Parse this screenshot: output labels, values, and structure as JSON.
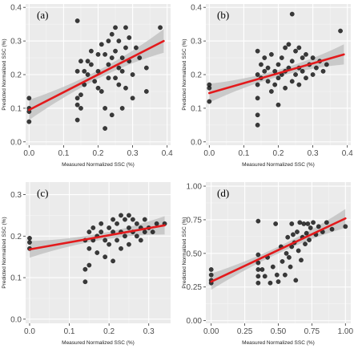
{
  "colors": {
    "panel_bg": "#ebebeb",
    "grid_major": "#ffffff",
    "grid_minor": "#f5f5f5",
    "point": "#1a1a1a",
    "fit_line": "#e31a1c",
    "ci_band": "#bdbdbd"
  },
  "chart_data": [
    {
      "type": "scatter",
      "panel_label": "(a)",
      "xlabel": "Measured Normalized SSC (%)",
      "ylabel": "Predicted Normalized SSC (%)",
      "xlim": [
        -0.01,
        0.41
      ],
      "ylim": [
        -0.01,
        0.41
      ],
      "xticks": [
        0.0,
        0.1,
        0.2,
        0.3,
        0.4
      ],
      "xtick_labels": [
        "0.0",
        "0.1",
        "0.2",
        "0.3",
        "0.4"
      ],
      "yticks": [
        0.0,
        0.1,
        0.2,
        0.3,
        0.4
      ],
      "ytick_labels": [
        "0.0",
        "0.1",
        "0.2",
        "0.3",
        "0.4"
      ],
      "grid": true,
      "fit": {
        "x0": 0.0,
        "y0": 0.095,
        "x1": 0.39,
        "y1": 0.3,
        "ci": [
          0.03,
          0.012,
          0.035
        ]
      },
      "points": [
        [
          0.0,
          0.13
        ],
        [
          0.0,
          0.1
        ],
        [
          0.0,
          0.09
        ],
        [
          0.0,
          0.06
        ],
        [
          0.14,
          0.36
        ],
        [
          0.14,
          0.21
        ],
        [
          0.14,
          0.13
        ],
        [
          0.14,
          0.11
        ],
        [
          0.14,
          0.065
        ],
        [
          0.15,
          0.24
        ],
        [
          0.15,
          0.1
        ],
        [
          0.15,
          0.14
        ],
        [
          0.16,
          0.21
        ],
        [
          0.16,
          0.17
        ],
        [
          0.17,
          0.24
        ],
        [
          0.17,
          0.2
        ],
        [
          0.18,
          0.27
        ],
        [
          0.18,
          0.23
        ],
        [
          0.19,
          0.18
        ],
        [
          0.2,
          0.26
        ],
        [
          0.2,
          0.21
        ],
        [
          0.2,
          0.16
        ],
        [
          0.21,
          0.29
        ],
        [
          0.21,
          0.15
        ],
        [
          0.22,
          0.26
        ],
        [
          0.22,
          0.1
        ],
        [
          0.22,
          0.04
        ],
        [
          0.23,
          0.3
        ],
        [
          0.23,
          0.23
        ],
        [
          0.23,
          0.19
        ],
        [
          0.24,
          0.32
        ],
        [
          0.24,
          0.25
        ],
        [
          0.24,
          0.08
        ],
        [
          0.25,
          0.34
        ],
        [
          0.25,
          0.27
        ],
        [
          0.25,
          0.19
        ],
        [
          0.26,
          0.3
        ],
        [
          0.26,
          0.22
        ],
        [
          0.26,
          0.17
        ],
        [
          0.27,
          0.25
        ],
        [
          0.27,
          0.21
        ],
        [
          0.27,
          0.1
        ],
        [
          0.28,
          0.34
        ],
        [
          0.28,
          0.28
        ],
        [
          0.28,
          0.16
        ],
        [
          0.29,
          0.31
        ],
        [
          0.29,
          0.24
        ],
        [
          0.3,
          0.2
        ],
        [
          0.3,
          0.13
        ],
        [
          0.31,
          0.28
        ],
        [
          0.32,
          0.25
        ],
        [
          0.34,
          0.22
        ],
        [
          0.34,
          0.15
        ],
        [
          0.38,
          0.34
        ]
      ]
    },
    {
      "type": "scatter",
      "panel_label": "(b)",
      "xlabel": "Measured Normalized SSC (%)",
      "ylabel": "Predicted Normalized SSC (%)",
      "xlim": [
        -0.01,
        0.41
      ],
      "ylim": [
        -0.01,
        0.41
      ],
      "xticks": [
        0.0,
        0.1,
        0.2,
        0.3,
        0.4
      ],
      "xtick_labels": [
        "0.0",
        "0.1",
        "0.2",
        "0.3",
        "0.4"
      ],
      "yticks": [
        0.0,
        0.1,
        0.2,
        0.3,
        0.4
      ],
      "ytick_labels": [
        "0.0",
        "0.1",
        "0.2",
        "0.3",
        "0.4"
      ],
      "grid": true,
      "fit": {
        "x0": 0.0,
        "y0": 0.145,
        "x1": 0.39,
        "y1": 0.26,
        "ci": [
          0.028,
          0.01,
          0.03
        ]
      },
      "points": [
        [
          0.0,
          0.17
        ],
        [
          0.0,
          0.16
        ],
        [
          0.0,
          0.12
        ],
        [
          0.14,
          0.27
        ],
        [
          0.14,
          0.2
        ],
        [
          0.14,
          0.17
        ],
        [
          0.14,
          0.13
        ],
        [
          0.14,
          0.08
        ],
        [
          0.14,
          0.05
        ],
        [
          0.15,
          0.23
        ],
        [
          0.15,
          0.19
        ],
        [
          0.16,
          0.25
        ],
        [
          0.16,
          0.21
        ],
        [
          0.17,
          0.22
        ],
        [
          0.17,
          0.18
        ],
        [
          0.18,
          0.26
        ],
        [
          0.18,
          0.15
        ],
        [
          0.19,
          0.21
        ],
        [
          0.19,
          0.17
        ],
        [
          0.2,
          0.23
        ],
        [
          0.2,
          0.19
        ],
        [
          0.2,
          0.11
        ],
        [
          0.21,
          0.25
        ],
        [
          0.21,
          0.2
        ],
        [
          0.22,
          0.28
        ],
        [
          0.22,
          0.21
        ],
        [
          0.22,
          0.16
        ],
        [
          0.23,
          0.29
        ],
        [
          0.23,
          0.22
        ],
        [
          0.24,
          0.38
        ],
        [
          0.24,
          0.24
        ],
        [
          0.24,
          0.18
        ],
        [
          0.25,
          0.27
        ],
        [
          0.25,
          0.2
        ],
        [
          0.26,
          0.28
        ],
        [
          0.26,
          0.22
        ],
        [
          0.26,
          0.17
        ],
        [
          0.27,
          0.25
        ],
        [
          0.27,
          0.21
        ],
        [
          0.28,
          0.26
        ],
        [
          0.28,
          0.19
        ],
        [
          0.29,
          0.23
        ],
        [
          0.3,
          0.25
        ],
        [
          0.3,
          0.2
        ],
        [
          0.31,
          0.22
        ],
        [
          0.32,
          0.24
        ],
        [
          0.33,
          0.21
        ],
        [
          0.34,
          0.23
        ],
        [
          0.38,
          0.33
        ]
      ]
    },
    {
      "type": "scatter",
      "panel_label": "(c)",
      "xlabel": "Measured Normalized SSC (%)",
      "ylabel": "Predicted Normalized SSC (%)",
      "xlim": [
        -0.01,
        0.355
      ],
      "ylim": [
        -0.01,
        0.33
      ],
      "xticks": [
        0.0,
        0.1,
        0.2,
        0.3
      ],
      "xtick_labels": [
        "0.0",
        "0.1",
        "0.2",
        "0.3"
      ],
      "yticks": [
        0.0,
        0.1,
        0.2,
        0.3
      ],
      "ytick_labels": [
        "0.0",
        "0.1",
        "0.2",
        "0.3"
      ],
      "grid": true,
      "fit": {
        "x0": 0.0,
        "y0": 0.168,
        "x1": 0.34,
        "y1": 0.226,
        "ci": [
          0.02,
          0.008,
          0.022
        ]
      },
      "points": [
        [
          0.0,
          0.195
        ],
        [
          0.0,
          0.185
        ],
        [
          0.0,
          0.17
        ],
        [
          0.14,
          0.19
        ],
        [
          0.14,
          0.12
        ],
        [
          0.14,
          0.09
        ],
        [
          0.15,
          0.21
        ],
        [
          0.15,
          0.17
        ],
        [
          0.15,
          0.13
        ],
        [
          0.16,
          0.22
        ],
        [
          0.16,
          0.19
        ],
        [
          0.17,
          0.2
        ],
        [
          0.17,
          0.16
        ],
        [
          0.18,
          0.23
        ],
        [
          0.18,
          0.21
        ],
        [
          0.19,
          0.19
        ],
        [
          0.19,
          0.15
        ],
        [
          0.2,
          0.22
        ],
        [
          0.2,
          0.18
        ],
        [
          0.21,
          0.24
        ],
        [
          0.21,
          0.21
        ],
        [
          0.21,
          0.14
        ],
        [
          0.22,
          0.23
        ],
        [
          0.22,
          0.19
        ],
        [
          0.23,
          0.25
        ],
        [
          0.23,
          0.21
        ],
        [
          0.23,
          0.17
        ],
        [
          0.24,
          0.24
        ],
        [
          0.24,
          0.2
        ],
        [
          0.25,
          0.25
        ],
        [
          0.25,
          0.22
        ],
        [
          0.25,
          0.18
        ],
        [
          0.26,
          0.24
        ],
        [
          0.26,
          0.21
        ],
        [
          0.27,
          0.23
        ],
        [
          0.27,
          0.2
        ],
        [
          0.28,
          0.22
        ],
        [
          0.28,
          0.19
        ],
        [
          0.29,
          0.24
        ],
        [
          0.29,
          0.21
        ],
        [
          0.3,
          0.22
        ],
        [
          0.31,
          0.21
        ],
        [
          0.32,
          0.23
        ],
        [
          0.34,
          0.23
        ]
      ]
    },
    {
      "type": "scatter",
      "panel_label": "(d)",
      "xlabel": "Measured Normalized SSC (%)",
      "ylabel": "Predicted Normalized SSC (%)",
      "xlim": [
        -0.04,
        1.04
      ],
      "ylim": [
        -0.02,
        1.03
      ],
      "xticks": [
        0.0,
        0.25,
        0.5,
        0.75,
        1.0
      ],
      "xtick_labels": [
        "0.00",
        "0.25",
        "0.50",
        "0.75",
        "1.00"
      ],
      "yticks": [
        0.0,
        0.25,
        0.5,
        0.75,
        1.0
      ],
      "ytick_labels": [
        "0.00",
        "0.25",
        "0.50",
        "0.75",
        "1.00"
      ],
      "grid": true,
      "fit": {
        "x0": 0.0,
        "y0": 0.29,
        "x1": 1.0,
        "y1": 0.76,
        "ci": [
          0.06,
          0.025,
          0.07
        ]
      },
      "points": [
        [
          0.0,
          0.38
        ],
        [
          0.0,
          0.34
        ],
        [
          0.0,
          0.3
        ],
        [
          0.0,
          0.28
        ],
        [
          0.35,
          0.74
        ],
        [
          0.35,
          0.49
        ],
        [
          0.35,
          0.43
        ],
        [
          0.35,
          0.38
        ],
        [
          0.35,
          0.33
        ],
        [
          0.35,
          0.28
        ],
        [
          0.38,
          0.38
        ],
        [
          0.4,
          0.33
        ],
        [
          0.42,
          0.47
        ],
        [
          0.44,
          0.28
        ],
        [
          0.46,
          0.4
        ],
        [
          0.48,
          0.72
        ],
        [
          0.49,
          0.34
        ],
        [
          0.5,
          0.29
        ],
        [
          0.52,
          0.55
        ],
        [
          0.53,
          0.44
        ],
        [
          0.55,
          0.34
        ],
        [
          0.56,
          0.5
        ],
        [
          0.57,
          0.62
        ],
        [
          0.58,
          0.47
        ],
        [
          0.59,
          0.4
        ],
        [
          0.6,
          0.72
        ],
        [
          0.6,
          0.55
        ],
        [
          0.61,
          0.64
        ],
        [
          0.62,
          0.58
        ],
        [
          0.63,
          0.3
        ],
        [
          0.64,
          0.66
        ],
        [
          0.65,
          0.52
        ],
        [
          0.66,
          0.73
        ],
        [
          0.67,
          0.45
        ],
        [
          0.68,
          0.62
        ],
        [
          0.69,
          0.72
        ],
        [
          0.7,
          0.57
        ],
        [
          0.71,
          0.65
        ],
        [
          0.72,
          0.72
        ],
        [
          0.73,
          0.6
        ],
        [
          0.74,
          0.69
        ],
        [
          0.76,
          0.73
        ],
        [
          0.78,
          0.64
        ],
        [
          0.8,
          0.7
        ],
        [
          0.83,
          0.66
        ],
        [
          0.86,
          0.73
        ],
        [
          0.9,
          0.68
        ],
        [
          1.0,
          0.7
        ]
      ]
    }
  ]
}
